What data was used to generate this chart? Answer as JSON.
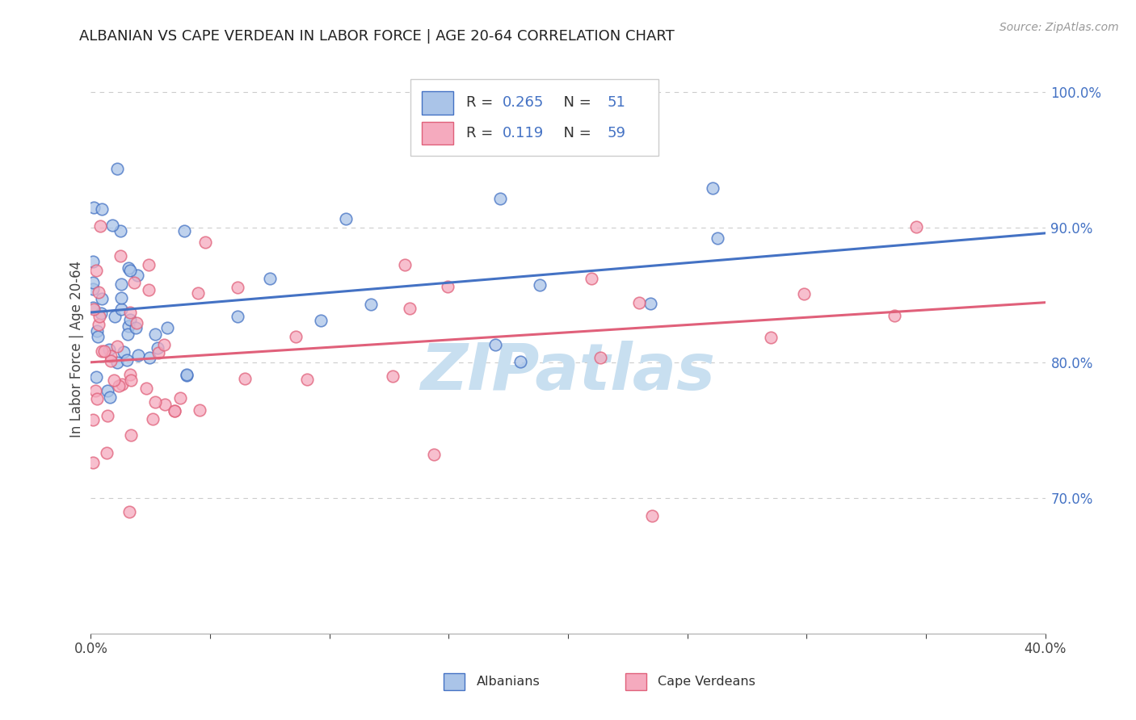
{
  "title": "ALBANIAN VS CAPE VERDEAN IN LABOR FORCE | AGE 20-64 CORRELATION CHART",
  "source_text": "Source: ZipAtlas.com",
  "ylabel": "In Labor Force | Age 20-64",
  "xlim": [
    0.0,
    0.4
  ],
  "ylim": [
    0.6,
    1.02
  ],
  "y_ticks_right": [
    0.7,
    0.8,
    0.9,
    1.0
  ],
  "y_tick_labels_right": [
    "70.0%",
    "80.0%",
    "90.0%",
    "100.0%"
  ],
  "grid_color": "#cccccc",
  "background_color": "#ffffff",
  "watermark_text": "ZIPatlas",
  "watermark_color": "#c8dff0",
  "legend_R1": "0.265",
  "legend_N1": "51",
  "legend_R2": "0.119",
  "legend_N2": "59",
  "albanian_face_color": "#aac4e8",
  "capeverdean_face_color": "#f5aabe",
  "line_albanian_color": "#4472c4",
  "line_capeverdean_color": "#e0607a",
  "title_fontsize": 13,
  "legend_text_color": "#333333",
  "legend_value_color": "#4472c4",
  "right_axis_color": "#4472c4"
}
